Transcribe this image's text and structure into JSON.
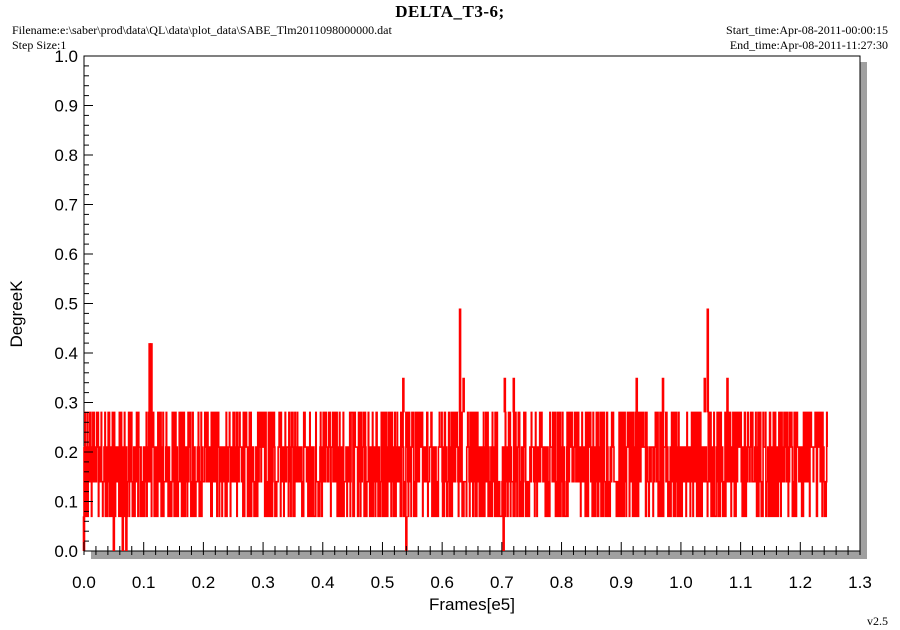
{
  "header": {
    "title": "DELTA_T3-6;",
    "filename": "Filename:e:\\saber\\prod\\data\\QL\\data\\plot_data\\SABE_Tlm2011098000000.dat",
    "step_size": "Step Size:1",
    "start_time": "Start_time:Apr-08-2011-00:00:15",
    "end_time": "End_time:Apr-08-2011-11:27:30",
    "version": "v2.5"
  },
  "colors": {
    "series": "#ff0000",
    "shadow": "#a0a0a0",
    "axis": "#000000"
  },
  "chart_data": {
    "type": "line",
    "title": "DELTA_T3-6;",
    "xlabel": "Frames[e5]",
    "ylabel": "DegreeK",
    "xlim": [
      0.0,
      1.3
    ],
    "ylim": [
      0.0,
      1.0
    ],
    "xticks": [
      "0.0",
      "0.1",
      "0.2",
      "0.3",
      "0.4",
      "0.5",
      "0.6",
      "0.7",
      "0.8",
      "0.9",
      "1.0",
      "1.1",
      "1.2",
      "1.3"
    ],
    "yticks": [
      "0.0",
      "0.1",
      "0.2",
      "0.3",
      "0.4",
      "0.5",
      "0.6",
      "0.7",
      "0.8",
      "0.9",
      "1.0"
    ],
    "grid": false,
    "series": [
      {
        "color": "#ff0000",
        "levels": [
          0.07,
          0.14,
          0.21,
          0.28
        ],
        "x_range": [
          0.0,
          1.245
        ],
        "band": [
          0.07,
          0.28
        ],
        "points": [
          {
            "x": 0.0,
            "y": 0.0
          },
          {
            "x": 0.003,
            "y": 0.28
          },
          {
            "x": 0.05,
            "y": 0.0
          },
          {
            "x": 0.065,
            "y": 0.0
          },
          {
            "x": 0.071,
            "y": 0.0
          },
          {
            "x": 0.11,
            "y": 0.42
          },
          {
            "x": 0.113,
            "y": 0.42
          },
          {
            "x": 0.535,
            "y": 0.35
          },
          {
            "x": 0.54,
            "y": 0.0
          },
          {
            "x": 0.63,
            "y": 0.49
          },
          {
            "x": 0.636,
            "y": 0.35
          },
          {
            "x": 0.703,
            "y": 0.0
          },
          {
            "x": 0.705,
            "y": 0.35
          },
          {
            "x": 0.72,
            "y": 0.35
          },
          {
            "x": 0.926,
            "y": 0.35
          },
          {
            "x": 0.97,
            "y": 0.35
          },
          {
            "x": 1.04,
            "y": 0.35
          },
          {
            "x": 1.045,
            "y": 0.49
          },
          {
            "x": 1.078,
            "y": 0.35
          }
        ]
      }
    ]
  }
}
